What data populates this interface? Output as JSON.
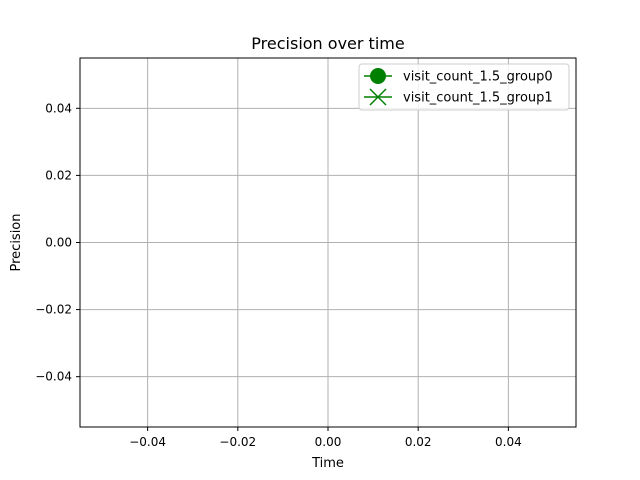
{
  "chart_data": {
    "type": "line",
    "title": "Precision over time",
    "xlabel": "Time",
    "ylabel": "Precision",
    "xlim": [
      -0.055,
      0.055
    ],
    "ylim": [
      -0.055,
      0.055
    ],
    "xticks": [
      -0.04,
      -0.02,
      0.0,
      0.02,
      0.04
    ],
    "yticks": [
      -0.04,
      -0.02,
      0.0,
      0.02,
      0.04
    ],
    "xtick_labels": [
      "−0.04",
      "−0.02",
      "0.00",
      "0.02",
      "0.04"
    ],
    "ytick_labels": [
      "−0.04",
      "−0.02",
      "0.00",
      "0.02",
      "0.04"
    ],
    "grid": true,
    "legend_position": "top-right",
    "series": [
      {
        "name": "visit_count_1.5_group0",
        "color": "#008000",
        "marker": "circle",
        "x": [],
        "y": []
      },
      {
        "name": "visit_count_1.5_group1",
        "color": "#008000",
        "marker": "x",
        "x": [],
        "y": []
      }
    ]
  }
}
